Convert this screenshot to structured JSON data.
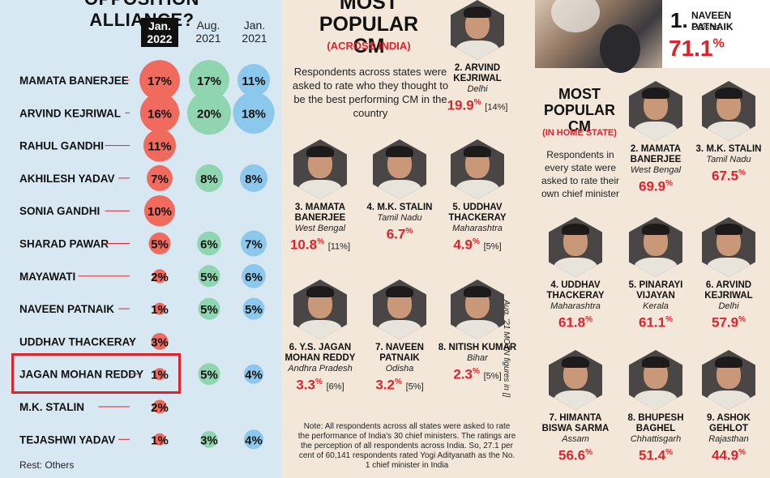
{
  "left": {
    "title": "OPPOSITION ALLIANCE?",
    "headers": [
      {
        "l1": "Jan.",
        "l2": "2022"
      },
      {
        "l1": "Aug.",
        "l2": "2021"
      },
      {
        "l1": "Jan.",
        "l2": "2021"
      }
    ],
    "rest_note": "Rest: Others",
    "highlighted_row": "JAGAN MOHAN REDDY"
  },
  "chart_data": {
    "type": "bubble-table",
    "title": "OPPOSITION ALLIANCE?",
    "unit": "%",
    "categories": [
      "MAMATA BANERJEE",
      "ARVIND KEJRIWAL",
      "RAHUL GANDHI",
      "AKHILESH YADAV",
      "SONIA GANDHI",
      "SHARAD PAWAR",
      "MAYAWATI",
      "NAVEEN PATNAIK",
      "UDDHAV THACKERAY",
      "JAGAN MOHAN REDDY",
      "M.K. STALIN",
      "TEJASHWI YADAV"
    ],
    "series": [
      {
        "name": "Jan. 2022",
        "color": "#f06a5e",
        "values": [
          17,
          16,
          11,
          7,
          10,
          5,
          2,
          1,
          3,
          1,
          2,
          1
        ]
      },
      {
        "name": "Aug. 2021",
        "color": "#8fd5b0",
        "values": [
          17,
          20,
          null,
          8,
          null,
          6,
          5,
          5,
          null,
          5,
          null,
          3
        ]
      },
      {
        "name": "Jan. 2021",
        "color": "#8cc7ec",
        "values": [
          11,
          18,
          null,
          8,
          null,
          7,
          6,
          5,
          null,
          4,
          null,
          4
        ]
      }
    ]
  },
  "mid": {
    "title_l1": "MOST",
    "title_l2": "POPULAR CM",
    "subtitle": "(ACROSS INDIA)",
    "desc": "Respondents across states were asked to rate who they thought to be the best performing CM in the country",
    "note": "Note: All respondents across all states were asked to rate the performance of India's 30 chief ministers. The ratings are the perception of all respondents across India. So, 27.1 per cent of 60,141 respondents rated Yogi Adityanath as the No. 1 chief minister in India",
    "sidenote": "Aug. '21 MOTN figures in []",
    "cards": [
      {
        "name": "2. ARVIND KEJRIWAL",
        "state": "Delhi",
        "value": "19.9",
        "prev": "[14%]"
      },
      {
        "name": "3. MAMATA BANERJEE",
        "state": "West Bengal",
        "value": "10.8",
        "prev": "[11%]"
      },
      {
        "name": "4. M.K. STALIN",
        "state": "Tamil Nadu",
        "value": "6.7",
        "prev": ""
      },
      {
        "name": "5. UDDHAV THACKERAY",
        "state": "Maharashtra",
        "value": "4.9",
        "prev": "[5%]"
      },
      {
        "name": "6. Y.S. JAGAN MOHAN REDDY",
        "state": "Andhra Pradesh",
        "value": "3.3",
        "prev": "[6%]"
      },
      {
        "name": "7. NAVEEN PATNAIK",
        "state": "Odisha",
        "value": "3.2",
        "prev": "[5%]"
      },
      {
        "name": "8. NITISH KUMAR",
        "state": "Bihar",
        "value": "2.3",
        "prev": "[5%]"
      }
    ]
  },
  "right": {
    "top": {
      "num": "1.",
      "name": "NAVEEN PATNAIK",
      "state": "Odisha",
      "value": "71.1"
    },
    "title_l1": "MOST",
    "title_l2": "POPULAR CM",
    "subtitle": "(IN HOME STATE)",
    "desc": "Respondents in every state were asked to rate their own chief minister",
    "cards": [
      {
        "name": "2. MAMATA BANERJEE",
        "state": "West Bengal",
        "value": "69.9"
      },
      {
        "name": "3. M.K. STALIN",
        "state": "Tamil Nadu",
        "value": "67.5"
      },
      {
        "name": "4. UDDHAV THACKERAY",
        "state": "Maharashtra",
        "value": "61.8"
      },
      {
        "name": "5. PINARAYI VIJAYAN",
        "state": "Kerala",
        "value": "61.1"
      },
      {
        "name": "6. ARVIND KEJRIWAL",
        "state": "Delhi",
        "value": "57.9"
      },
      {
        "name": "7. HIMANTA BISWA SARMA",
        "state": "Assam",
        "value": "56.6"
      },
      {
        "name": "8. BHUPESH BAGHEL",
        "state": "Chhattisgarh",
        "value": "51.4"
      },
      {
        "name": "9. ASHOK GEHLOT",
        "state": "Rajasthan",
        "value": "44.9"
      }
    ]
  },
  "percent_sign": "%"
}
